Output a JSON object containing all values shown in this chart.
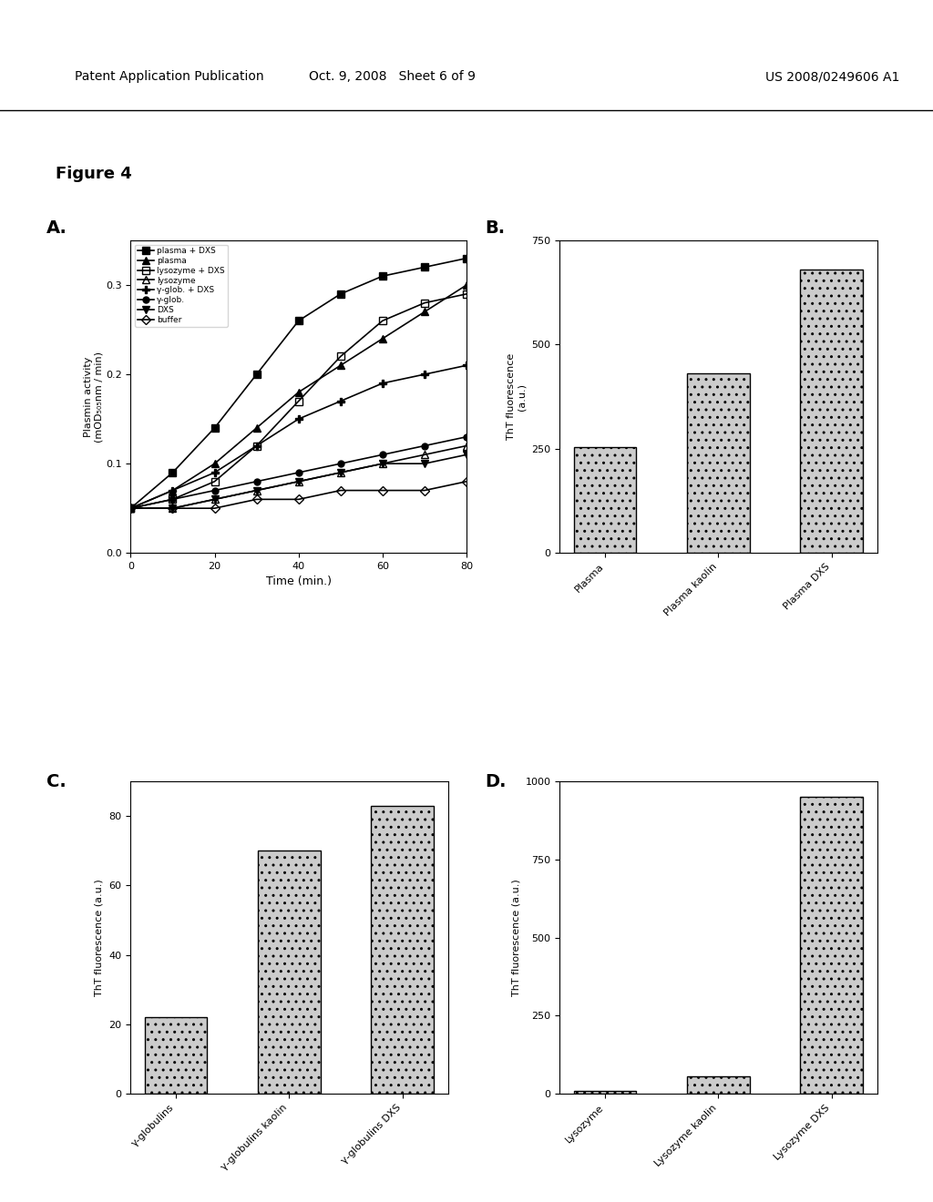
{
  "figure_title": "Figure 4",
  "panel_A": {
    "xlabel": "Time (min.)",
    "ylabel": "Plasmin activity\n(mOD₅₀₅nm / min)",
    "xlim": [
      0,
      80
    ],
    "ylim": [
      0.0,
      0.35
    ],
    "yticks": [
      0.0,
      0.1,
      0.2,
      0.3
    ],
    "xticks": [
      0,
      20,
      40,
      60,
      80
    ],
    "series": [
      {
        "label": "plasma + DXS",
        "marker": "s",
        "fillstyle": "full",
        "color": "#000000",
        "x": [
          0,
          10,
          20,
          30,
          40,
          50,
          60,
          70,
          80
        ],
        "y": [
          0.05,
          0.09,
          0.14,
          0.2,
          0.26,
          0.29,
          0.31,
          0.32,
          0.33
        ]
      },
      {
        "label": "plasma",
        "marker": "^",
        "fillstyle": "full",
        "color": "#000000",
        "x": [
          0,
          10,
          20,
          30,
          40,
          50,
          60,
          70,
          80
        ],
        "y": [
          0.05,
          0.07,
          0.1,
          0.14,
          0.18,
          0.21,
          0.24,
          0.27,
          0.3
        ]
      },
      {
        "label": "lysozyme + DXS",
        "marker": "s",
        "fillstyle": "none",
        "color": "#000000",
        "x": [
          0,
          10,
          20,
          30,
          40,
          50,
          60,
          70,
          80
        ],
        "y": [
          0.05,
          0.06,
          0.08,
          0.12,
          0.17,
          0.22,
          0.26,
          0.28,
          0.29
        ]
      },
      {
        "label": "lysozyme",
        "marker": "^",
        "fillstyle": "none",
        "color": "#000000",
        "x": [
          0,
          10,
          20,
          30,
          40,
          50,
          60,
          70,
          80
        ],
        "y": [
          0.05,
          0.05,
          0.06,
          0.07,
          0.08,
          0.09,
          0.1,
          0.11,
          0.12
        ]
      },
      {
        "label": "γ-glob. + DXS",
        "marker": "+",
        "fillstyle": "full",
        "color": "#000000",
        "x": [
          0,
          10,
          20,
          30,
          40,
          50,
          60,
          70,
          80
        ],
        "y": [
          0.05,
          0.07,
          0.09,
          0.12,
          0.15,
          0.17,
          0.19,
          0.2,
          0.21
        ]
      },
      {
        "label": "γ-glob.",
        "marker": "o",
        "fillstyle": "full",
        "color": "#000000",
        "x": [
          0,
          10,
          20,
          30,
          40,
          50,
          60,
          70,
          80
        ],
        "y": [
          0.05,
          0.06,
          0.07,
          0.08,
          0.09,
          0.1,
          0.11,
          0.12,
          0.13
        ]
      },
      {
        "label": "DXS",
        "marker": "v",
        "fillstyle": "full",
        "color": "#000000",
        "x": [
          0,
          10,
          20,
          30,
          40,
          50,
          60,
          70,
          80
        ],
        "y": [
          0.05,
          0.05,
          0.06,
          0.07,
          0.08,
          0.09,
          0.1,
          0.1,
          0.11
        ]
      },
      {
        "label": "buffer",
        "marker": "D",
        "fillstyle": "none",
        "color": "#000000",
        "x": [
          0,
          10,
          20,
          30,
          40,
          50,
          60,
          70,
          80
        ],
        "y": [
          0.05,
          0.05,
          0.05,
          0.06,
          0.06,
          0.07,
          0.07,
          0.07,
          0.08
        ]
      }
    ]
  },
  "panel_B": {
    "ylabel": "ThT fluorescence\n(a.u.)",
    "ylim": [
      0,
      750
    ],
    "yticks": [
      0,
      250,
      500,
      750
    ],
    "categories": [
      "Plasma",
      "Plasma kaolin",
      "Plasma DXS"
    ],
    "values": [
      255,
      430,
      680
    ],
    "bar_color": "#bbbbbb",
    "hatch": ".."
  },
  "panel_C": {
    "ylabel": "ThT fluorescence (a.u.)",
    "ylim": [
      0,
      90
    ],
    "yticks": [
      0,
      20,
      40,
      60,
      80
    ],
    "categories": [
      "γ-globulins",
      "γ-globulins kaolin",
      "γ-globulins DXS"
    ],
    "values": [
      22,
      70,
      83
    ],
    "bar_color": "#bbbbbb",
    "hatch": ".."
  },
  "panel_D": {
    "ylabel": "ThT fluorescence (a.u.)",
    "ylim": [
      0,
      1000
    ],
    "yticks": [
      0,
      250,
      500,
      750,
      1000
    ],
    "categories": [
      "Lysozyme",
      "Lysozyme kaolin",
      "Lysozyme DXS"
    ],
    "values": [
      8,
      55,
      950
    ],
    "bar_color": "#bbbbbb",
    "hatch": ".."
  }
}
